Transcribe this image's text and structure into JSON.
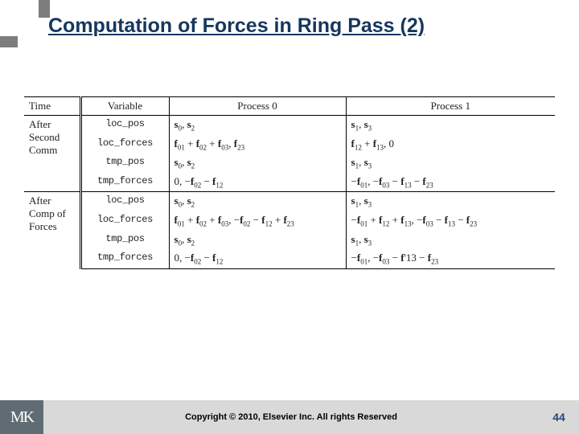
{
  "title": "Computation of Forces in Ring Pass (2)",
  "headers": {
    "time": "Time",
    "variable": "Variable",
    "p0": "Process 0",
    "p1": "Process 1"
  },
  "groups": [
    {
      "time": [
        "After",
        "Second",
        "Comm"
      ],
      "rows": [
        {
          "var": "loc_pos",
          "p0": "<b>s</b><sub>0</sub>, <b>s</b><sub>2</sub>",
          "p1": "<b>s</b><sub>1</sub>, <b>s</b><sub>3</sub>"
        },
        {
          "var": "loc_forces",
          "p0": "<b>f</b><sub>01</sub> + <b>f</b><sub>02</sub> + <b>f</b><sub>03</sub>, <b>f</b><sub>23</sub>",
          "p1": "<b>f</b><sub>12</sub> + <b>f</b><sub>13</sub>, 0"
        },
        {
          "var": "tmp_pos",
          "p0": "<b>s</b><sub>0</sub>, <b>s</b><sub>2</sub>",
          "p1": "<b>s</b><sub>1</sub>, <b>s</b><sub>3</sub>"
        },
        {
          "var": "tmp_forces",
          "p0": "0, −<b>f</b><sub>02</sub> − <b>f</b><sub>12</sub>",
          "p1": "−<b>f</b><sub>01</sub>, −<b>f</b><sub>03</sub> − <b>f</b><sub>13</sub> − <b>f</b><sub>23</sub>"
        }
      ]
    },
    {
      "time": [
        "After",
        "Comp of",
        "Forces"
      ],
      "rows": [
        {
          "var": "loc_pos",
          "p0": "<b>s</b><sub>0</sub>, <b>s</b><sub>2</sub>",
          "p1": "<b>s</b><sub>1</sub>, <b>s</b><sub>3</sub>"
        },
        {
          "var": "loc_forces",
          "p0": "<b>f</b><sub>01</sub> + <b>f</b><sub>02</sub> + <b>f</b><sub>03</sub>, −<b>f</b><sub>02</sub> − <b>f</b><sub>12</sub> + <b>f</b><sub>23</sub>",
          "p1": "−<b>f</b><sub>01</sub> + <b>f</b><sub>12</sub> + <b>f</b><sub>13</sub>, −<b>f</b><sub>03</sub> − <b>f</b><sub>13</sub> − <b>f</b><sub>23</sub>"
        },
        {
          "var": "tmp_pos",
          "p0": "<b>s</b><sub>0</sub>, <b>s</b><sub>2</sub>",
          "p1": "<b>s</b><sub>1</sub>, <b>s</b><sub>3</sub>"
        },
        {
          "var": "tmp_forces",
          "p0": "0, −<b>f</b><sub>02</sub> − <b>f</b><sub>12</sub>",
          "p1": "−<b>f</b><sub>01</sub>, −<b>f</b><sub>03</sub> − <b>f</b>'13 − <b>f</b><sub>23</sub>"
        }
      ]
    }
  ],
  "footer": {
    "logo": "MK",
    "copyright": "Copyright © 2010, Elsevier Inc. All rights Reserved",
    "page": "44"
  }
}
